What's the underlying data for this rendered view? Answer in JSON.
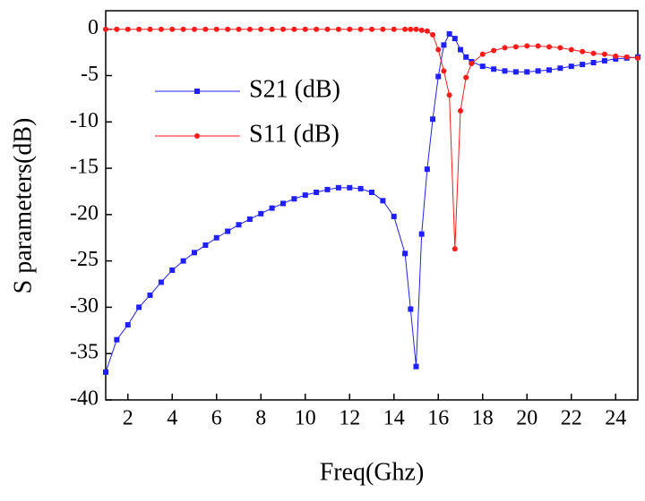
{
  "chart_data": {
    "type": "line",
    "x_label": "Freq(Ghz)",
    "y_label": "S parameters(dB)",
    "x": [
      1,
      1.5,
      2,
      2.5,
      3,
      3.5,
      4,
      4.5,
      5,
      5.5,
      6,
      6.5,
      7,
      7.5,
      8,
      8.5,
      9,
      9.5,
      10,
      10.5,
      11,
      11.5,
      12,
      12.5,
      13,
      13.5,
      14,
      14.5,
      14.75,
      15,
      15.25,
      15.5,
      15.75,
      16,
      16.25,
      16.5,
      16.75,
      17,
      17.25,
      17.5,
      18,
      18.5,
      19,
      19.5,
      20,
      20.5,
      21,
      21.5,
      22,
      22.5,
      23,
      23.5,
      24,
      24.5,
      25
    ],
    "series": [
      {
        "name": "S21 (dB)",
        "color": "#1f1fff",
        "marker": "square",
        "values": [
          -37,
          -33.5,
          -31.9,
          -30,
          -28.7,
          -27.3,
          -26,
          -25,
          -24.1,
          -23.3,
          -22.5,
          -21.8,
          -21.1,
          -20.5,
          -19.9,
          -19.3,
          -18.8,
          -18.3,
          -17.9,
          -17.6,
          -17.3,
          -17.1,
          -17.1,
          -17.2,
          -17.6,
          -18.5,
          -20.2,
          -24.2,
          -30.2,
          -36.4,
          -22.1,
          -15.1,
          -9.7,
          -5.1,
          -1.7,
          -0.5,
          -1.0,
          -2.2,
          -3.0,
          -3.5,
          -4.0,
          -4.3,
          -4.5,
          -4.6,
          -4.6,
          -4.5,
          -4.4,
          -4.2,
          -4.0,
          -3.8,
          -3.6,
          -3.4,
          -3.2,
          -3.1,
          -3.0
        ]
      },
      {
        "name": "S11 (dB)",
        "color": "#ff1a1a",
        "marker": "circle",
        "values": [
          0,
          0,
          0,
          0,
          0,
          0,
          0,
          0,
          0,
          0,
          0,
          0,
          0,
          0,
          0,
          0,
          0,
          0,
          0,
          0,
          0,
          0,
          0,
          0,
          0,
          0,
          0,
          0,
          0,
          0,
          -0.1,
          -0.2,
          -0.6,
          -2.2,
          -4.5,
          -7.1,
          -23.7,
          -8.8,
          -5.2,
          -3.7,
          -2.7,
          -2.3,
          -2.0,
          -1.9,
          -1.8,
          -1.8,
          -1.9,
          -2.0,
          -2.2,
          -2.4,
          -2.6,
          -2.7,
          -2.9,
          -3.0,
          -3.1
        ]
      }
    ],
    "xlim": [
      1,
      25
    ],
    "xticks": [
      2,
      4,
      6,
      8,
      10,
      12,
      14,
      16,
      18,
      20,
      22,
      24
    ],
    "ylim": [
      -40,
      2
    ],
    "yticks": [
      0,
      -5,
      -10,
      -15,
      -20,
      -25,
      -30,
      -35,
      -40
    ],
    "legend": "upper left"
  }
}
